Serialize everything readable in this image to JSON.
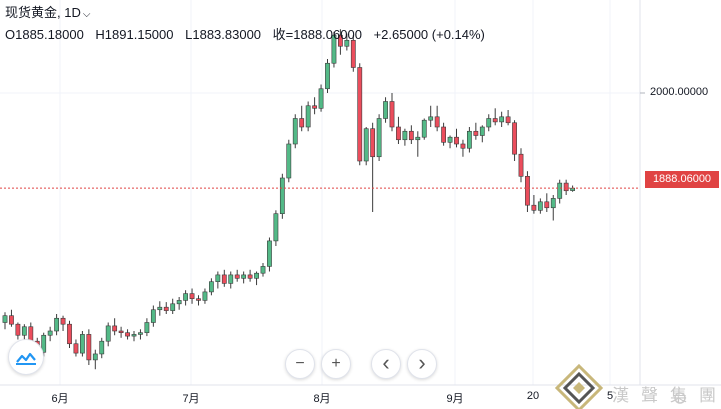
{
  "legend": {
    "symbol": "现货黄金,",
    "interval": "1D",
    "open": "O1885.18000",
    "high": "H1891.15000",
    "low": "L1883.83000",
    "close": "收=1888.06000",
    "change": "+2.65000 (+0.14%)"
  },
  "price_axis": {
    "label_2000": "2000.00000",
    "current_price": "1888.06000"
  },
  "controls": {
    "zoom_out": "−",
    "zoom_in": "+",
    "scroll_left": "‹",
    "scroll_right": "›"
  },
  "watermark_text": "漢聲集團",
  "colors": {
    "up": "#53b987",
    "down": "#eb4d5c",
    "price_tag": "#e04343",
    "grid": "#f0f3fa"
  },
  "chart_data": {
    "type": "candlestick",
    "x_tick_labels": [
      "6月",
      "7月",
      "8月",
      "9月",
      "20",
      "5"
    ],
    "y_tick_labels": [
      "2000.00000"
    ],
    "current_price": 1888.06,
    "candles": [
      [
        1730,
        1742,
        1722,
        1738
      ],
      [
        1738,
        1745,
        1725,
        1728
      ],
      [
        1728,
        1730,
        1710,
        1715
      ],
      [
        1715,
        1728,
        1705,
        1725
      ],
      [
        1725,
        1730,
        1705,
        1708
      ],
      [
        1708,
        1712,
        1690,
        1695
      ],
      [
        1695,
        1718,
        1690,
        1715
      ],
      [
        1715,
        1725,
        1708,
        1720
      ],
      [
        1720,
        1740,
        1715,
        1735
      ],
      [
        1735,
        1738,
        1720,
        1728
      ],
      [
        1728,
        1732,
        1700,
        1705
      ],
      [
        1705,
        1710,
        1690,
        1694
      ],
      [
        1694,
        1720,
        1690,
        1716
      ],
      [
        1716,
        1722,
        1680,
        1686
      ],
      [
        1686,
        1698,
        1675,
        1693
      ],
      [
        1693,
        1712,
        1688,
        1708
      ],
      [
        1708,
        1730,
        1702,
        1726
      ],
      [
        1726,
        1735,
        1715,
        1720
      ],
      [
        1720,
        1725,
        1712,
        1718
      ],
      [
        1718,
        1722,
        1710,
        1714
      ],
      [
        1714,
        1720,
        1708,
        1716
      ],
      [
        1716,
        1722,
        1710,
        1718
      ],
      [
        1718,
        1735,
        1714,
        1730
      ],
      [
        1730,
        1750,
        1725,
        1745
      ],
      [
        1745,
        1755,
        1738,
        1748
      ],
      [
        1748,
        1754,
        1740,
        1744
      ],
      [
        1744,
        1758,
        1740,
        1752
      ],
      [
        1752,
        1760,
        1745,
        1756
      ],
      [
        1756,
        1768,
        1750,
        1764
      ],
      [
        1764,
        1770,
        1752,
        1758
      ],
      [
        1758,
        1762,
        1750,
        1756
      ],
      [
        1756,
        1770,
        1752,
        1766
      ],
      [
        1766,
        1782,
        1762,
        1778
      ],
      [
        1778,
        1790,
        1770,
        1786
      ],
      [
        1786,
        1792,
        1772,
        1776
      ],
      [
        1776,
        1790,
        1770,
        1786
      ],
      [
        1786,
        1792,
        1778,
        1782
      ],
      [
        1782,
        1790,
        1776,
        1786
      ],
      [
        1786,
        1792,
        1778,
        1782
      ],
      [
        1782,
        1790,
        1774,
        1788
      ],
      [
        1788,
        1800,
        1784,
        1796
      ],
      [
        1796,
        1830,
        1790,
        1826
      ],
      [
        1826,
        1862,
        1820,
        1858
      ],
      [
        1858,
        1905,
        1852,
        1900
      ],
      [
        1900,
        1945,
        1895,
        1940
      ],
      [
        1940,
        1975,
        1935,
        1970
      ],
      [
        1970,
        1985,
        1955,
        1960
      ],
      [
        1960,
        1990,
        1955,
        1985
      ],
      [
        1985,
        1995,
        1975,
        1982
      ],
      [
        1982,
        2010,
        1978,
        2005
      ],
      [
        2005,
        2040,
        2000,
        2035
      ],
      [
        2035,
        2072,
        2030,
        2068
      ],
      [
        2068,
        2075,
        2045,
        2055
      ],
      [
        2055,
        2070,
        2050,
        2062
      ],
      [
        2062,
        2068,
        2025,
        2030
      ],
      [
        2030,
        2035,
        1915,
        1920
      ],
      [
        1920,
        1960,
        1915,
        1958
      ],
      [
        1958,
        1965,
        1860,
        1925
      ],
      [
        1925,
        1975,
        1920,
        1970
      ],
      [
        1970,
        1995,
        1965,
        1990
      ],
      [
        1990,
        2000,
        1955,
        1960
      ],
      [
        1960,
        1972,
        1940,
        1945
      ],
      [
        1945,
        1958,
        1938,
        1955
      ],
      [
        1955,
        1962,
        1940,
        1945
      ],
      [
        1945,
        1955,
        1925,
        1948
      ],
      [
        1948,
        1970,
        1945,
        1968
      ],
      [
        1968,
        1985,
        1960,
        1972
      ],
      [
        1972,
        1985,
        1955,
        1960
      ],
      [
        1960,
        1965,
        1938,
        1942
      ],
      [
        1942,
        1950,
        1935,
        1948
      ],
      [
        1948,
        1958,
        1936,
        1940
      ],
      [
        1940,
        1945,
        1925,
        1935
      ],
      [
        1935,
        1960,
        1930,
        1955
      ],
      [
        1955,
        1965,
        1945,
        1950
      ],
      [
        1950,
        1962,
        1942,
        1960
      ],
      [
        1960,
        1975,
        1955,
        1970
      ],
      [
        1970,
        1982,
        1962,
        1966
      ],
      [
        1966,
        1978,
        1960,
        1972
      ],
      [
        1972,
        1980,
        1962,
        1965
      ],
      [
        1965,
        1968,
        1920,
        1928
      ],
      [
        1928,
        1935,
        1895,
        1902
      ],
      [
        1902,
        1908,
        1860,
        1868
      ],
      [
        1868,
        1880,
        1858,
        1862
      ],
      [
        1862,
        1876,
        1858,
        1872
      ],
      [
        1872,
        1882,
        1860,
        1865
      ],
      [
        1865,
        1880,
        1850,
        1876
      ],
      [
        1876,
        1898,
        1870,
        1894
      ],
      [
        1894,
        1898,
        1880,
        1885
      ],
      [
        1885.18,
        1891.15,
        1883.83,
        1888.06
      ]
    ]
  }
}
